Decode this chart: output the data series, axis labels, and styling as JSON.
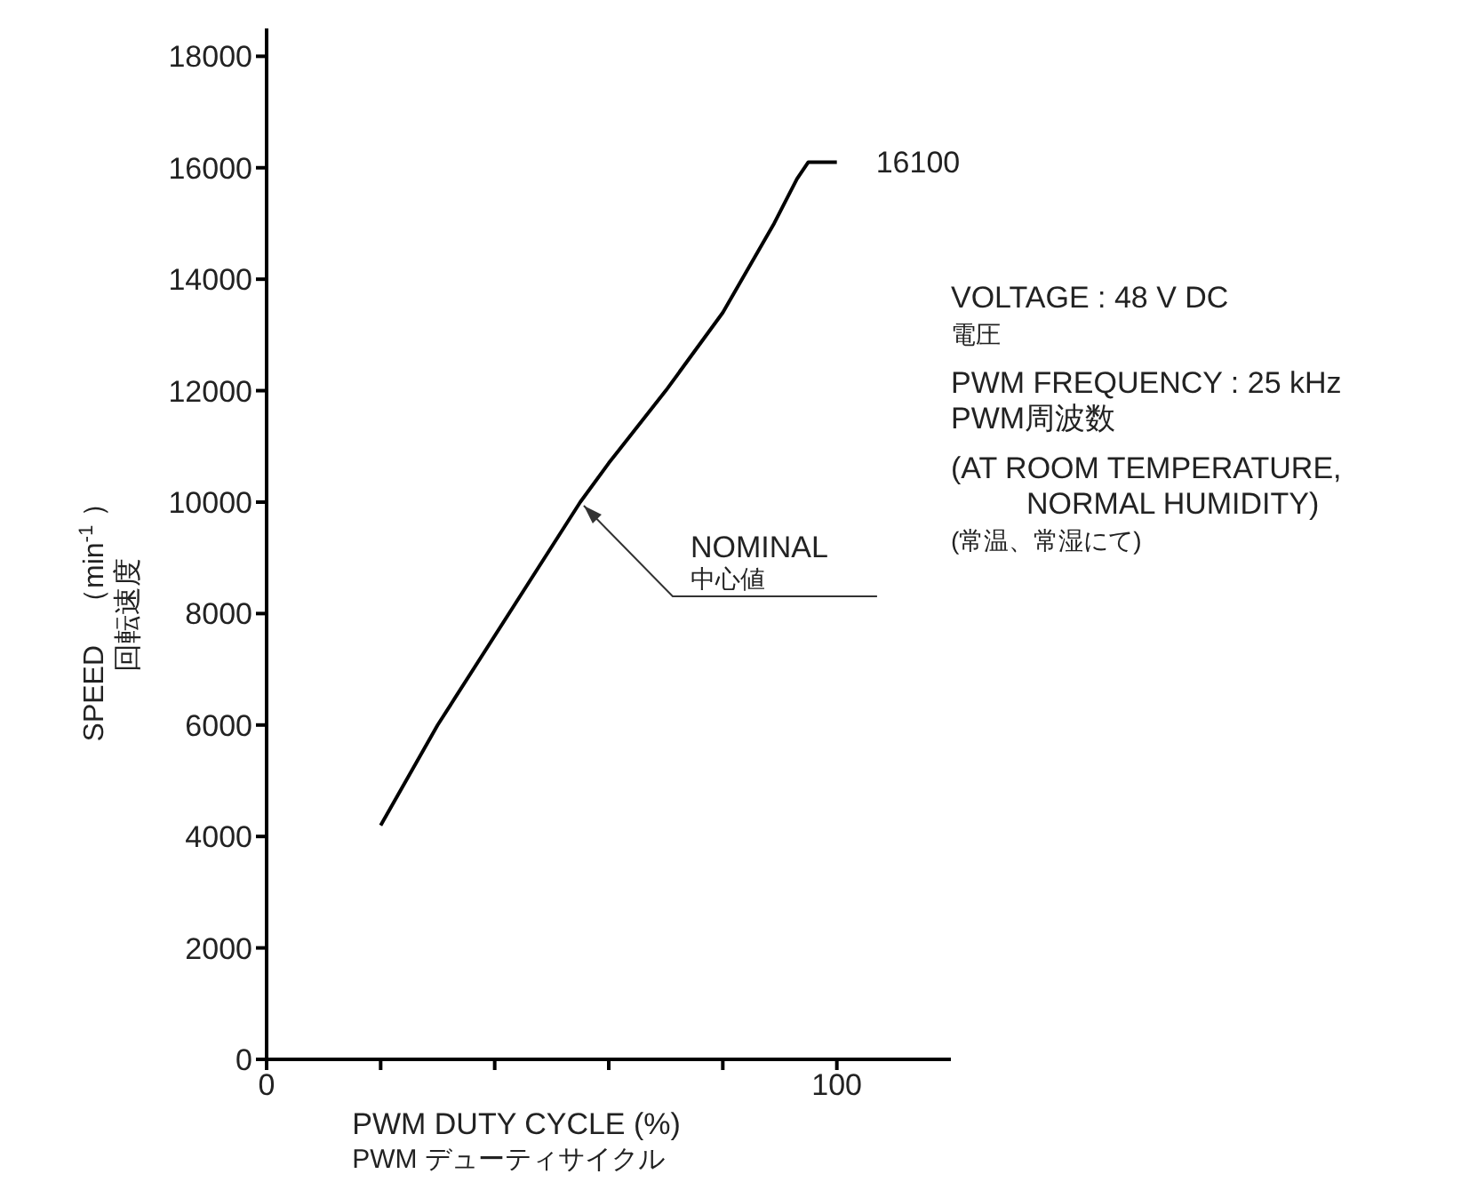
{
  "chart_data": {
    "type": "line",
    "xlabel": "PWM DUTY CYCLE (%)\nPWM デューティサイクル",
    "ylabel": "SPEED　（min$^{-1}$ ）回転速度",
    "x": [
      20,
      30,
      55,
      60,
      70,
      80,
      89,
      93,
      95,
      100
    ],
    "series": [
      {
        "color": "#000000",
        "values": [
          4200,
          6000,
          10000,
          10700,
          12000,
          13400,
          15000,
          15800,
          16100,
          16100
        ]
      }
    ],
    "xlim": [
      0,
      120
    ],
    "xticks": [
      0,
      {
        "value": 20,
        "label": null
      },
      {
        "value": 40,
        "label": null
      },
      {
        "value": 60,
        "label": null
      },
      {
        "value": 80,
        "label": null
      },
      100
    ],
    "ylim": [
      0,
      18500
    ],
    "yticks": [
      0,
      2000,
      4000,
      6000,
      8000,
      10000,
      12000,
      14000,
      16000,
      18000
    ],
    "grid": false,
    "legend": false,
    "marker": "none",
    "line_style": "solid",
    "annotations": [
      {
        "text": "16100",
        "x": 100,
        "y": 16100
      },
      {
        "text": "NOMINAL\n中心値",
        "x": 55,
        "y": 10000
      },
      "VOLTAGE : 48 V DC\n電圧",
      "PWM FREQUENCY : 25 kHz\nPWM周波数",
      "(AT ROOM TEMPERATURE,\n         NORMAL HUMIDITY)\n(常温、常湿にて)"
    ]
  }
}
